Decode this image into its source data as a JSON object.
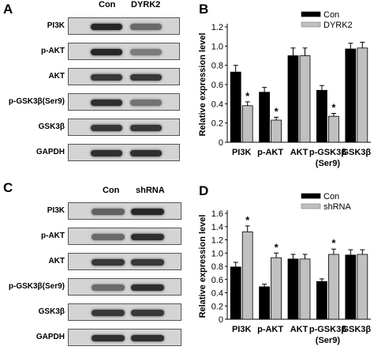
{
  "panels": {
    "A": {
      "letter": "A",
      "headers": [
        "Con",
        "DYRK2"
      ],
      "rows": [
        {
          "label": "PI3K",
          "bands": [
            0.95,
            0.55
          ]
        },
        {
          "label": "p-AKT",
          "bands": [
            0.95,
            0.45
          ]
        },
        {
          "label": "AKT",
          "bands": [
            0.85,
            0.85
          ]
        },
        {
          "label": "p-GSK3β(Ser9)",
          "bands": [
            0.9,
            0.5
          ]
        },
        {
          "label": "GSK3β",
          "bands": [
            0.85,
            0.85
          ]
        },
        {
          "label": "GAPDH",
          "bands": [
            0.9,
            0.9
          ]
        }
      ]
    },
    "C": {
      "letter": "C",
      "headers": [
        "Con",
        "shRNA"
      ],
      "rows": [
        {
          "label": "PI3K",
          "bands": [
            0.6,
            0.95
          ]
        },
        {
          "label": "p-AKT",
          "bands": [
            0.55,
            0.9
          ]
        },
        {
          "label": "AKT",
          "bands": [
            0.85,
            0.85
          ]
        },
        {
          "label": "p-GSK3β(Ser9)",
          "bands": [
            0.55,
            0.9
          ]
        },
        {
          "label": "GSK3β",
          "bands": [
            0.85,
            0.85
          ]
        },
        {
          "label": "GAPDH",
          "bands": [
            0.9,
            0.9
          ]
        }
      ]
    },
    "B": {
      "letter": "B"
    },
    "D": {
      "letter": "D"
    }
  },
  "chart_data": [
    {
      "type": "bar",
      "panel": "B",
      "title": "",
      "xlabel": "",
      "ylabel": "Relative expression level",
      "ylim": [
        0,
        1.2
      ],
      "yticks": [
        "0",
        "0.2",
        "0.4",
        "0.6",
        "0.8",
        "1.0",
        "1.2"
      ],
      "categories": [
        "PI3K",
        "p-AKT",
        "AKT",
        "p-GSK3β",
        "GSK3β"
      ],
      "category_sublabels": [
        "",
        "",
        "",
        "(Ser9)",
        ""
      ],
      "series": [
        {
          "name": "Con",
          "color": "#000000",
          "values": [
            0.73,
            0.52,
            0.9,
            0.54,
            0.97
          ],
          "errors": [
            0.07,
            0.05,
            0.08,
            0.05,
            0.06
          ]
        },
        {
          "name": "DYRK2",
          "color": "#c0c0c0",
          "values": [
            0.38,
            0.23,
            0.9,
            0.27,
            0.98
          ],
          "errors": [
            0.04,
            0.03,
            0.08,
            0.03,
            0.06
          ]
        }
      ],
      "significance": [
        {
          "category": 0,
          "series": 1,
          "label": "*"
        },
        {
          "category": 1,
          "series": 1,
          "label": "*"
        },
        {
          "category": 3,
          "series": 1,
          "label": "*"
        }
      ],
      "legend": "top-right",
      "grid": false
    },
    {
      "type": "bar",
      "panel": "D",
      "title": "",
      "xlabel": "",
      "ylabel": "Relative expression level",
      "ylim": [
        0,
        1.6
      ],
      "yticks": [
        "0",
        "0.2",
        "0.4",
        "0.6",
        "0.8",
        "1.0",
        "1.2",
        "1.4",
        "1.6"
      ],
      "categories": [
        "PI3K",
        "p-AKT",
        "AKT",
        "p-GSK3β",
        "GSK3β"
      ],
      "category_sublabels": [
        "",
        "",
        "",
        "(Ser9)",
        ""
      ],
      "series": [
        {
          "name": "Con",
          "color": "#000000",
          "values": [
            0.79,
            0.49,
            0.91,
            0.57,
            0.97
          ],
          "errors": [
            0.07,
            0.04,
            0.07,
            0.04,
            0.08
          ]
        },
        {
          "name": "shRNA",
          "color": "#c0c0c0",
          "values": [
            1.32,
            0.93,
            0.91,
            0.98,
            0.98
          ],
          "errors": [
            0.09,
            0.07,
            0.07,
            0.08,
            0.07
          ]
        }
      ],
      "significance": [
        {
          "category": 0,
          "series": 1,
          "label": "*"
        },
        {
          "category": 1,
          "series": 1,
          "label": "*"
        },
        {
          "category": 3,
          "series": 1,
          "label": "*"
        }
      ],
      "legend": "top-right",
      "grid": false
    }
  ]
}
